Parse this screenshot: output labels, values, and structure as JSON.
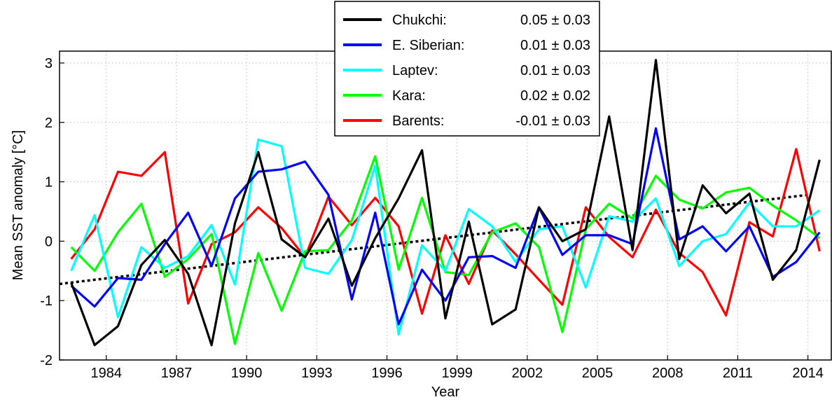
{
  "chart_data": {
    "type": "line",
    "xlabel": "Year",
    "ylabel": "Mean SST anomaly [°C]",
    "xlim": [
      1982,
      2015
    ],
    "ylim": [
      -2,
      3.2
    ],
    "x_ticks": [
      1984,
      1987,
      1990,
      1993,
      1996,
      1999,
      2002,
      2005,
      2008,
      2011,
      2014
    ],
    "y_ticks": [
      -2,
      -1,
      0,
      1,
      2,
      3
    ],
    "grid": true,
    "legend_position": "top",
    "x": [
      1982,
      1983,
      1984,
      1985,
      1986,
      1987,
      1988,
      1989,
      1990,
      1991,
      1992,
      1993,
      1994,
      1995,
      1996,
      1997,
      1998,
      1999,
      2000,
      2001,
      2002,
      2003,
      2004,
      2005,
      2006,
      2007,
      2008,
      2009,
      2010,
      2011,
      2012,
      2013,
      2014
    ],
    "series": [
      {
        "name": "Chukchi:",
        "trend": "0.05 ± 0.03",
        "color": "#000000",
        "values": [
          -0.7,
          -1.75,
          -1.43,
          -0.4,
          0.02,
          -0.55,
          -1.75,
          0.3,
          1.5,
          0.03,
          -0.27,
          0.38,
          -0.75,
          0.05,
          0.72,
          1.53,
          -1.3,
          0.33,
          -1.4,
          -1.15,
          0.57,
          0.0,
          0.2,
          2.1,
          -0.15,
          3.05,
          -0.3,
          0.94,
          0.47,
          0.8,
          -0.65,
          -0.15,
          1.37
        ]
      },
      {
        "name": "E. Siberian:",
        "trend": "0.01 ± 0.03",
        "color": "#0000ff",
        "values": [
          -0.75,
          -1.1,
          -0.62,
          -0.65,
          -0.05,
          0.48,
          -0.42,
          0.72,
          1.17,
          1.21,
          1.34,
          0.78,
          -0.98,
          0.48,
          -1.4,
          -0.48,
          -1.0,
          -0.27,
          -0.25,
          -0.45,
          0.57,
          -0.23,
          0.1,
          0.1,
          -0.05,
          1.9,
          0.03,
          0.25,
          -0.17,
          0.25,
          -0.6,
          -0.35,
          0.15
        ]
      },
      {
        "name": "Laptev:",
        "trend": "0.01 ± 0.03",
        "color": "#00ffff",
        "values": [
          -0.5,
          0.44,
          -1.28,
          -0.1,
          -0.45,
          -0.25,
          0.27,
          -0.73,
          1.71,
          1.6,
          -0.45,
          -0.55,
          0.02,
          1.27,
          -1.57,
          -0.07,
          -0.5,
          0.54,
          0.25,
          -0.35,
          0.2,
          0.25,
          -0.78,
          0.42,
          0.33,
          0.72,
          -0.42,
          0.0,
          0.12,
          0.65,
          0.25,
          0.25,
          0.52
        ]
      },
      {
        "name": "Kara:",
        "trend": "0.02 ± 0.02",
        "color": "#00ff00",
        "values": [
          -0.1,
          -0.5,
          0.15,
          0.63,
          -0.6,
          -0.3,
          0.12,
          -1.73,
          -0.2,
          -1.17,
          -0.17,
          -0.15,
          0.35,
          1.43,
          -0.48,
          0.73,
          -0.52,
          -0.57,
          0.15,
          0.3,
          -0.1,
          -1.53,
          0.2,
          0.63,
          0.38,
          1.1,
          0.7,
          0.55,
          0.82,
          0.9,
          0.6,
          0.35,
          0.05
        ]
      },
      {
        "name": "Barents:",
        "trend": "-0.01 ± 0.03",
        "color": "#ff0000",
        "values": [
          -0.3,
          0.2,
          1.17,
          1.1,
          1.5,
          -1.05,
          -0.05,
          0.15,
          0.57,
          0.22,
          -0.27,
          0.75,
          0.27,
          0.73,
          0.25,
          -1.22,
          0.1,
          -0.72,
          0.18,
          -0.22,
          -0.65,
          -1.07,
          0.57,
          0.07,
          -0.27,
          0.53,
          -0.2,
          -0.52,
          -1.25,
          0.32,
          0.08,
          1.55,
          -0.17
        ]
      }
    ],
    "trend_line": {
      "style": "dotted",
      "color": "#000000",
      "x": [
        1982,
        2014
      ],
      "y": [
        -0.72,
        0.78
      ]
    }
  }
}
